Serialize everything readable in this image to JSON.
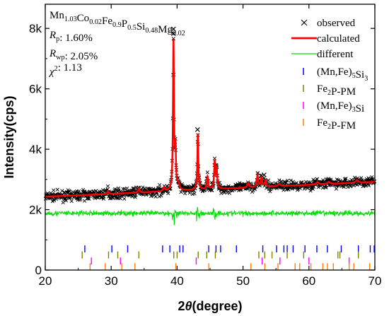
{
  "chart_data": {
    "type": "line",
    "title": "",
    "xlabel_prefix": "2",
    "xlabel_theta": "θ",
    "xlabel_suffix": "(degree)",
    "ylabel": "Intensity(cps)",
    "xlim": [
      20,
      70
    ],
    "ylim": [
      0,
      8800
    ],
    "x_ticks": [
      20,
      30,
      40,
      50,
      60,
      70
    ],
    "x_tick_labels": [
      "20",
      "30",
      "40",
      "50",
      "60",
      "70"
    ],
    "y_ticks": [
      0,
      2000,
      4000,
      6000,
      8000
    ],
    "y_tick_labels": [
      "0",
      "2k",
      "4k",
      "6k",
      "8k"
    ],
    "grid": false,
    "legend_position": "top-right",
    "annotation": {
      "formula": [
        {
          "t": "Mn",
          "sub": "1.03"
        },
        {
          "t": "Co",
          "sub": "0.02"
        },
        {
          "t": "Fe",
          "sub": "0.9"
        },
        {
          "t": "P",
          "sub": "0.5"
        },
        {
          "t": "Si",
          "sub": "0.48"
        },
        {
          "t": "Mg",
          "sub": "0.02"
        }
      ],
      "stats": [
        {
          "sym": "R",
          "sub": "p",
          "value": ": 1.60%"
        },
        {
          "sym": "R",
          "sub": "wp",
          "value": ": 2.05%"
        },
        {
          "sym": "χ",
          "sup": "2",
          "value": ": 1.13"
        }
      ]
    },
    "series": [
      {
        "name": "observed",
        "kind": "marker-x",
        "color": "#000000"
      },
      {
        "name": "calculated",
        "kind": "line",
        "color": "#ff0000"
      },
      {
        "name": "different",
        "kind": "line",
        "color": "#00dd00"
      }
    ],
    "background": {
      "x": [
        20,
        30,
        40,
        50,
        60,
        70
      ],
      "y": [
        2430,
        2520,
        2620,
        2720,
        2820,
        2920
      ]
    },
    "peaks": [
      {
        "x": 29.5,
        "h": 100,
        "w": 0.12
      },
      {
        "x": 34.2,
        "h": 150,
        "w": 0.12
      },
      {
        "x": 38.0,
        "h": 120,
        "w": 0.15
      },
      {
        "x": 39.45,
        "h": 4950,
        "w": 0.09
      },
      {
        "x": 39.75,
        "h": 1300,
        "w": 0.09
      },
      {
        "x": 40.2,
        "h": 200,
        "w": 0.18
      },
      {
        "x": 43.15,
        "h": 1850,
        "w": 0.09
      },
      {
        "x": 44.6,
        "h": 420,
        "w": 0.12
      },
      {
        "x": 45.7,
        "h": 900,
        "w": 0.1
      },
      {
        "x": 46.0,
        "h": 680,
        "w": 0.1
      },
      {
        "x": 50.8,
        "h": 150,
        "w": 0.15
      },
      {
        "x": 52.2,
        "h": 400,
        "w": 0.12
      },
      {
        "x": 52.8,
        "h": 300,
        "w": 0.12
      },
      {
        "x": 53.4,
        "h": 220,
        "w": 0.12
      },
      {
        "x": 55.5,
        "h": 80,
        "w": 0.2
      },
      {
        "x": 61.3,
        "h": 80,
        "w": 0.2
      },
      {
        "x": 63.0,
        "h": 70,
        "w": 0.2
      },
      {
        "x": 67.3,
        "h": 90,
        "w": 0.2
      }
    ],
    "observed_outliers": [
      {
        "x": 39.45,
        "y": 7980
      },
      {
        "x": 39.45,
        "y": 7830
      },
      {
        "x": 43.1,
        "y": 4650
      },
      {
        "x": 53.2,
        "y": 3150
      }
    ],
    "difference_baseline": 1880,
    "reflections": [
      {
        "name": "(Mn,Fe)5Si3",
        "label": [
          {
            "t": "(Mn,Fe)",
            "sub": "5"
          },
          {
            "t": "Si",
            "sub": "3"
          }
        ],
        "color": "#0000ff",
        "y": 700,
        "positions": [
          26.0,
          30.1,
          32.5,
          37.8,
          38.9,
          40.4,
          40.9,
          44.8,
          45.9,
          46.6,
          49.0,
          53.0,
          55.1,
          56.2,
          56.7,
          57.6,
          59.4,
          61.2,
          62.8,
          64.9,
          67.5,
          69.3,
          69.9
        ]
      },
      {
        "name": "Fe2P-PM",
        "label": [
          {
            "t": "Fe",
            "sub": "2"
          },
          {
            "t": "P-PM"
          }
        ],
        "color": "#808000",
        "y": 500,
        "positions": [
          25.6,
          29.6,
          31.0,
          34.2,
          39.5,
          40.0,
          43.2,
          44.5,
          45.8,
          52.4,
          53.3,
          54.4,
          56.7,
          59.2,
          64.4,
          64.7,
          67.5
        ]
      },
      {
        "name": "(Mn,Fe)3Si",
        "label": [
          {
            "t": "(Mn,Fe)",
            "sub": "3"
          },
          {
            "t": "Si"
          }
        ],
        "color": "#ff00ff",
        "y": 300,
        "positions": [
          27.0,
          31.4,
          42.9,
          52.9,
          55.6,
          60.0,
          66.1
        ]
      },
      {
        "name": "Fe2P-FM",
        "label": [
          {
            "t": "Fe",
            "sub": "2"
          },
          {
            "t": "P-FM"
          }
        ],
        "color": "#ff8000",
        "y": 110,
        "positions": [
          26.8,
          29.1,
          31.6,
          33.6,
          39.8,
          44.8,
          51.2,
          53.3,
          55.3,
          57.9,
          58.6,
          60.3,
          62.1,
          62.8,
          63.7,
          66.1,
          66.8,
          69.2
        ]
      }
    ]
  }
}
